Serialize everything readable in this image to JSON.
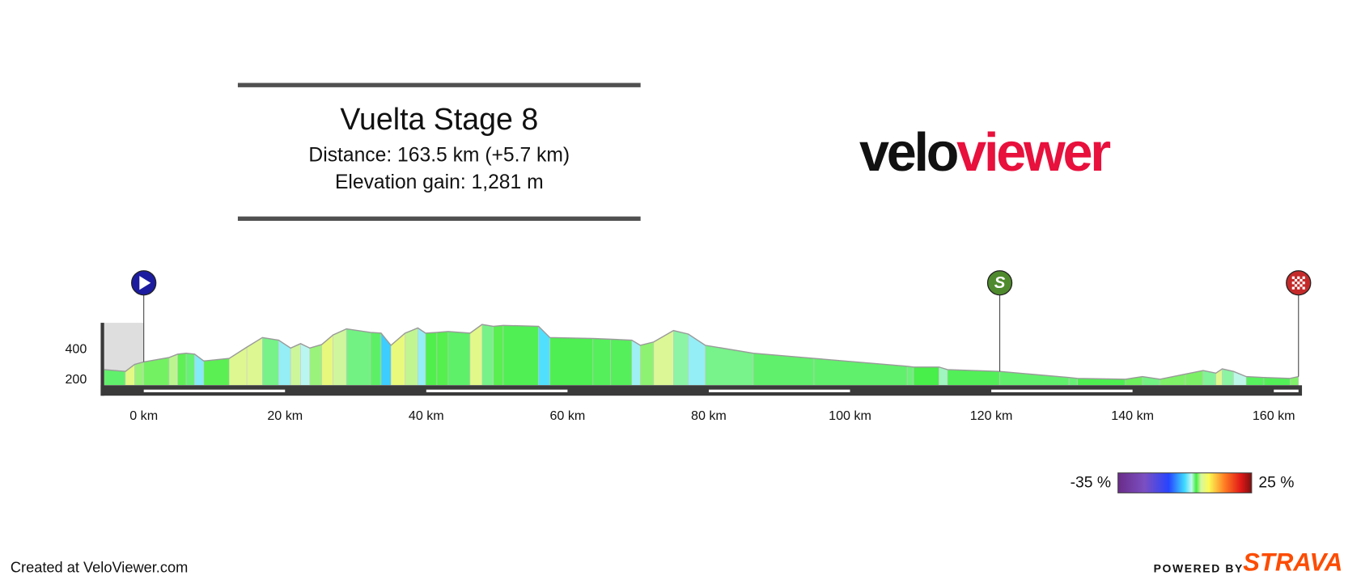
{
  "header": {
    "title": "Vuelta Stage 8",
    "lines": [
      "Distance: 163.5 km (+5.7 km)",
      "Elevation gain: 1,281 m"
    ]
  },
  "logo": [
    "velo",
    "viewer"
  ],
  "footer": {
    "credit": "Created at VeloViewer.com",
    "powered_by": "POWERED BY",
    "brand": "STRAVA"
  },
  "chart_data": {
    "type": "area",
    "x": [
      -5.6,
      -2.6,
      -1.3,
      0,
      3.6,
      4.8,
      6.0,
      7.2,
      8.5,
      12.1,
      14.6,
      16.8,
      19.1,
      20.8,
      22.2,
      23.5,
      25.2,
      26.8,
      28.7,
      32.1,
      33.6,
      35.0,
      37.0,
      38.8,
      39.9,
      41.5,
      43.1,
      46.2,
      47.9,
      49.5,
      50.9,
      55.9,
      57.5,
      63.6,
      66.1,
      69.1,
      70.3,
      72.2,
      75.0,
      77.1,
      79.5,
      86.3,
      94.9,
      108.1,
      109.0,
      112.6,
      113.8,
      121.2,
      131.0,
      132.2,
      139.0,
      141.4,
      143.9,
      147.5,
      150.0,
      151.8,
      152.7,
      154.3,
      156.1,
      158.6,
      162.3,
      163.5
    ],
    "values": [
      269,
      257,
      303,
      320,
      349,
      371,
      377,
      371,
      326,
      343,
      417,
      480,
      463,
      411,
      440,
      411,
      434,
      497,
      537,
      514,
      509,
      429,
      509,
      543,
      509,
      514,
      520,
      509,
      566,
      554,
      560,
      554,
      480,
      474,
      469,
      463,
      429,
      451,
      526,
      503,
      429,
      377,
      343,
      291,
      286,
      286,
      269,
      257,
      217,
      211,
      206,
      223,
      206,
      240,
      263,
      246,
      274,
      257,
      223,
      217,
      211,
      223
    ],
    "xlim": [
      -6.1,
      163.5
    ],
    "ylim": [
      166,
      577
    ],
    "xticks": [
      {
        "value": 0,
        "label": "0 km"
      },
      {
        "value": 20,
        "label": "20 km"
      },
      {
        "value": 40,
        "label": "40 km"
      },
      {
        "value": 60,
        "label": "60 km"
      },
      {
        "value": 80,
        "label": "80 km"
      },
      {
        "value": 100,
        "label": "100 km"
      },
      {
        "value": 120,
        "label": "120 km"
      },
      {
        "value": 140,
        "label": "140 km"
      },
      {
        "value": 160,
        "label": "160 km"
      }
    ],
    "yticks": [
      200,
      400
    ],
    "markers": [
      {
        "x": 0,
        "type": "start",
        "color": "#1c1ca0"
      },
      {
        "x": 121.2,
        "type": "sprint",
        "label": "S",
        "color": "#4f8a2e"
      },
      {
        "x": 163.5,
        "type": "finish",
        "color": "#c42a2a"
      }
    ],
    "colorbar": {
      "ticks": [
        {
          "value": -35,
          "label": "-35 %"
        },
        {
          "value": 25,
          "label": "25 %"
        }
      ]
    }
  }
}
